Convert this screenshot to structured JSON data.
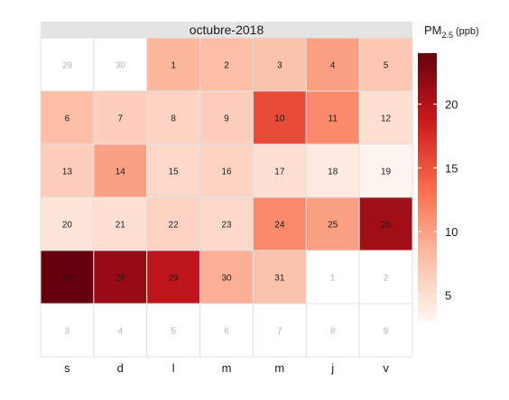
{
  "chart_data": {
    "type": "heatmap",
    "title": "octubre-2018",
    "legend_title": {
      "base": "PM",
      "subscript": "2.5",
      "unit": "(ppb)"
    },
    "legend_ticks": [
      5,
      10,
      15,
      20
    ],
    "legend_range": [
      3,
      24
    ],
    "legend_placement": "right",
    "weekdays": [
      "s",
      "d",
      "l",
      "m",
      "m",
      "j",
      "v"
    ],
    "colors": {
      "low": "#fff5f0",
      "mid1": "#fcbba1",
      "mid2": "#fb6a4a",
      "mid3": "#cb181d",
      "high": "#67000d",
      "header_bg": "#e5e5e5",
      "grid_line": "#e0e0e0",
      "outside_text": "#b3b3b3",
      "inside_text": "#1a1a1a"
    },
    "cells": [
      {
        "row": 0,
        "col": 0,
        "day": "29",
        "value": null,
        "in_month": false
      },
      {
        "row": 0,
        "col": 1,
        "day": "30",
        "value": null,
        "in_month": false
      },
      {
        "row": 0,
        "col": 2,
        "day": "1",
        "value": 8.5,
        "in_month": true
      },
      {
        "row": 0,
        "col": 3,
        "day": "2",
        "value": 8.0,
        "in_month": true
      },
      {
        "row": 0,
        "col": 4,
        "day": "3",
        "value": 7.5,
        "in_month": true
      },
      {
        "row": 0,
        "col": 5,
        "day": "4",
        "value": 10.0,
        "in_month": true
      },
      {
        "row": 0,
        "col": 6,
        "day": "5",
        "value": 7.0,
        "in_month": true
      },
      {
        "row": 1,
        "col": 0,
        "day": "6",
        "value": 8.0,
        "in_month": true
      },
      {
        "row": 1,
        "col": 1,
        "day": "7",
        "value": 6.5,
        "in_month": true
      },
      {
        "row": 1,
        "col": 2,
        "day": "8",
        "value": 6.0,
        "in_month": true
      },
      {
        "row": 1,
        "col": 3,
        "day": "9",
        "value": 6.5,
        "in_month": true
      },
      {
        "row": 1,
        "col": 4,
        "day": "10",
        "value": 15.5,
        "in_month": true
      },
      {
        "row": 1,
        "col": 5,
        "day": "11",
        "value": 11.5,
        "in_month": true
      },
      {
        "row": 1,
        "col": 6,
        "day": "12",
        "value": 5.0,
        "in_month": true
      },
      {
        "row": 2,
        "col": 0,
        "day": "13",
        "value": 6.5,
        "in_month": true
      },
      {
        "row": 2,
        "col": 1,
        "day": "14",
        "value": 10.0,
        "in_month": true
      },
      {
        "row": 2,
        "col": 2,
        "day": "15",
        "value": 5.5,
        "in_month": true
      },
      {
        "row": 2,
        "col": 3,
        "day": "16",
        "value": 6.0,
        "in_month": true
      },
      {
        "row": 2,
        "col": 4,
        "day": "17",
        "value": 5.0,
        "in_month": true
      },
      {
        "row": 2,
        "col": 5,
        "day": "18",
        "value": 4.0,
        "in_month": true
      },
      {
        "row": 2,
        "col": 6,
        "day": "19",
        "value": 3.0,
        "in_month": true
      },
      {
        "row": 3,
        "col": 0,
        "day": "20",
        "value": 4.5,
        "in_month": true
      },
      {
        "row": 3,
        "col": 1,
        "day": "21",
        "value": 5.0,
        "in_month": true
      },
      {
        "row": 3,
        "col": 2,
        "day": "22",
        "value": 6.0,
        "in_month": true
      },
      {
        "row": 3,
        "col": 3,
        "day": "23",
        "value": 5.5,
        "in_month": true
      },
      {
        "row": 3,
        "col": 4,
        "day": "24",
        "value": 11.5,
        "in_month": true
      },
      {
        "row": 3,
        "col": 5,
        "day": "25",
        "value": 10.0,
        "in_month": true
      },
      {
        "row": 3,
        "col": 6,
        "day": "26",
        "value": 21.0,
        "in_month": true
      },
      {
        "row": 4,
        "col": 0,
        "day": "27",
        "value": 24.0,
        "in_month": true
      },
      {
        "row": 4,
        "col": 1,
        "day": "28",
        "value": 21.5,
        "in_month": true
      },
      {
        "row": 4,
        "col": 2,
        "day": "29",
        "value": 19.5,
        "in_month": true
      },
      {
        "row": 4,
        "col": 3,
        "day": "30",
        "value": 9.0,
        "in_month": true
      },
      {
        "row": 4,
        "col": 4,
        "day": "31",
        "value": 7.5,
        "in_month": true
      },
      {
        "row": 4,
        "col": 5,
        "day": "1",
        "value": null,
        "in_month": false
      },
      {
        "row": 4,
        "col": 6,
        "day": "2",
        "value": null,
        "in_month": false
      },
      {
        "row": 5,
        "col": 0,
        "day": "3",
        "value": null,
        "in_month": false
      },
      {
        "row": 5,
        "col": 1,
        "day": "4",
        "value": null,
        "in_month": false
      },
      {
        "row": 5,
        "col": 2,
        "day": "5",
        "value": null,
        "in_month": false
      },
      {
        "row": 5,
        "col": 3,
        "day": "6",
        "value": null,
        "in_month": false
      },
      {
        "row": 5,
        "col": 4,
        "day": "7",
        "value": null,
        "in_month": false
      },
      {
        "row": 5,
        "col": 5,
        "day": "8",
        "value": null,
        "in_month": false
      },
      {
        "row": 5,
        "col": 6,
        "day": "9",
        "value": null,
        "in_month": false
      }
    ]
  }
}
